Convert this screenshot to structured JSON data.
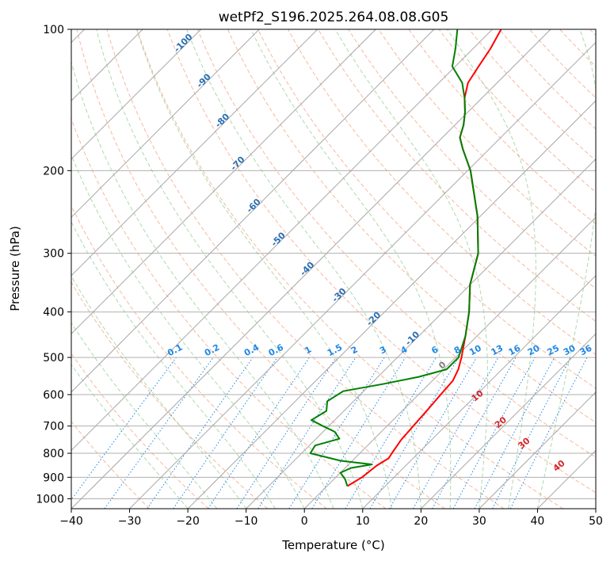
{
  "chart_data": {
    "type": "line",
    "subtype": "skew-t log-p diagram",
    "title": "wetPf2_S196.2025.264.08.08.G05",
    "xlabel": "Temperature (°C)",
    "ylabel": "Pressure (hPa)",
    "xlim": [
      -40,
      50
    ],
    "ylim": [
      1050,
      100
    ],
    "x_ticks": [
      -40,
      -30,
      -20,
      -10,
      0,
      10,
      20,
      30,
      40,
      50
    ],
    "y_ticks": [
      1000,
      900,
      800,
      700,
      600,
      500,
      400,
      300,
      200,
      100
    ],
    "grid": true,
    "series": [
      {
        "name": "Temperature",
        "color": "#ff0000",
        "points": [
          [
            940,
            3.5
          ],
          [
            900,
            4.5
          ],
          [
            850,
            5.0
          ],
          [
            820,
            5.8
          ],
          [
            800,
            5.5
          ],
          [
            750,
            4.8
          ],
          [
            700,
            4.5
          ],
          [
            650,
            4.2
          ],
          [
            600,
            3.8
          ],
          [
            560,
            3.5
          ],
          [
            530,
            2.5
          ],
          [
            500,
            1.0
          ],
          [
            450,
            -2.0
          ],
          [
            400,
            -5.5
          ],
          [
            350,
            -10.0
          ],
          [
            300,
            -14.0
          ],
          [
            250,
            -20.5
          ],
          [
            200,
            -29.5
          ],
          [
            180,
            -34.5
          ],
          [
            170,
            -37.0
          ],
          [
            160,
            -38.5
          ],
          [
            150,
            -40.5
          ],
          [
            140,
            -43.0
          ],
          [
            130,
            -45.0
          ],
          [
            120,
            -46.0
          ],
          [
            110,
            -47.0
          ],
          [
            100,
            -48.5
          ]
        ]
      },
      {
        "name": "Dewpoint",
        "color": "#008000",
        "points": [
          [
            940,
            3.5
          ],
          [
            910,
            2.0
          ],
          [
            880,
            0.0
          ],
          [
            860,
            1.0
          ],
          [
            845,
            4.0
          ],
          [
            830,
            -2.0
          ],
          [
            800,
            -8.5
          ],
          [
            770,
            -9.0
          ],
          [
            745,
            -6.0
          ],
          [
            720,
            -8.0
          ],
          [
            700,
            -11.0
          ],
          [
            680,
            -14.0
          ],
          [
            650,
            -13.0
          ],
          [
            620,
            -14.5
          ],
          [
            590,
            -13.5
          ],
          [
            570,
            -8.0
          ],
          [
            550,
            -3.0
          ],
          [
            530,
            0.5
          ],
          [
            500,
            0.5
          ],
          [
            450,
            -2.0
          ],
          [
            400,
            -5.5
          ],
          [
            350,
            -10.0
          ],
          [
            300,
            -14.0
          ],
          [
            250,
            -20.5
          ],
          [
            200,
            -29.5
          ],
          [
            180,
            -34.5
          ],
          [
            170,
            -37.0
          ],
          [
            160,
            -38.5
          ],
          [
            150,
            -40.5
          ],
          [
            140,
            -43.0
          ],
          [
            130,
            -46.0
          ],
          [
            120,
            -50.5
          ],
          [
            110,
            -53.0
          ],
          [
            100,
            -56.0
          ]
        ]
      }
    ],
    "reference_lines": {
      "isotherms_label": "solid grey skewed isotherms every 10 °C",
      "dry_adiabats_label": "dashed orange dry adiabats",
      "moist_adiabats_label": "dashed green moist adiabats",
      "mixing_ratio_lines_label": "dotted blue mixing ratio lines (g/kg)",
      "isotherm_annotations": [
        "-100",
        "-90",
        "-80",
        "-70",
        "-60",
        "-50",
        "-40",
        "-30",
        "-20",
        "-10"
      ],
      "mixing_ratio_annotations": [
        "0.1",
        "0.2",
        "0.4",
        "0.6",
        "1",
        "1.5",
        "2",
        "3",
        "4",
        "6",
        "8",
        "10",
        "13",
        "16",
        "20",
        "25",
        "30",
        "36"
      ],
      "dry_adiabat_annotations": [
        "0",
        "10",
        "20",
        "30",
        "40"
      ]
    }
  }
}
